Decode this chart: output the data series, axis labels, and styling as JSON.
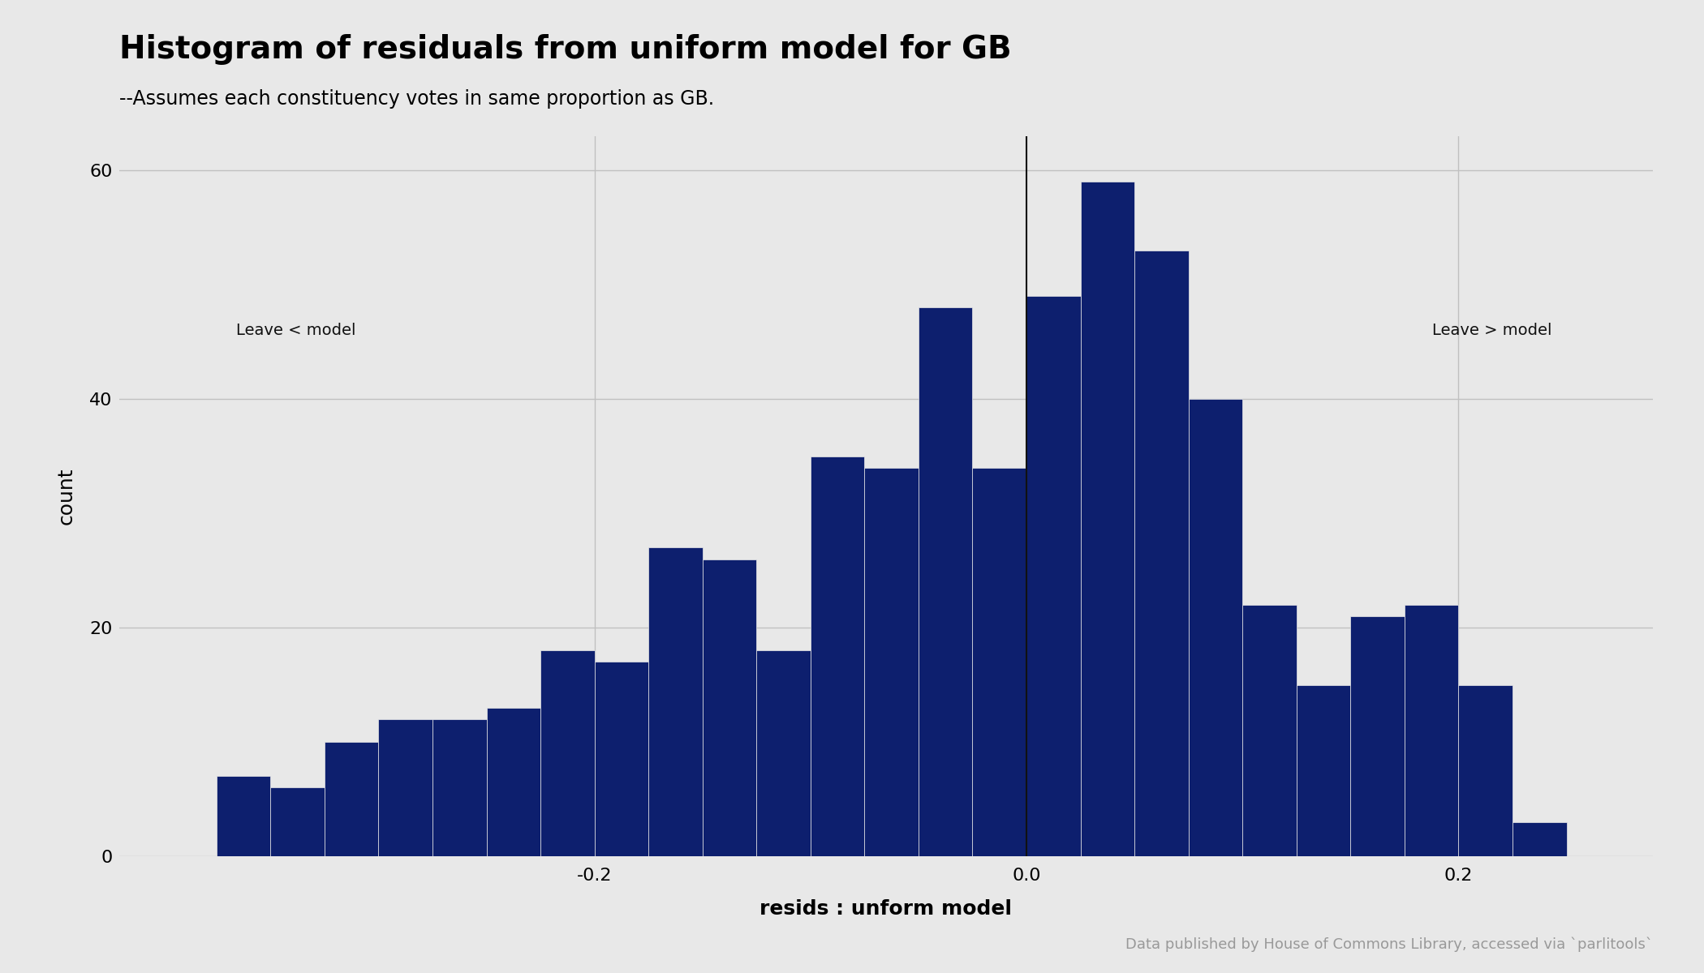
{
  "title": "Histogram of residuals from uniform model for GB",
  "subtitle": "--Assumes each constituency votes in same proportion as GB.",
  "xlabel": "resids : unform model",
  "ylabel": "count",
  "bar_color": "#0d1f6e",
  "background_color": "#e8e8e8",
  "vline_x": 0.0,
  "vline_color": "#111111",
  "annotation_left": "Leave < model",
  "annotation_right": "Leave > model",
  "caption": "Data published by House of Commons Library, accessed via `parlitools`",
  "bin_edges": [
    -0.375,
    -0.35,
    -0.325,
    -0.3,
    -0.275,
    -0.25,
    -0.225,
    -0.2,
    -0.175,
    -0.15,
    -0.125,
    -0.1,
    -0.075,
    -0.05,
    -0.025,
    0.0,
    0.025,
    0.05,
    0.075,
    0.1,
    0.125,
    0.15,
    0.175,
    0.2,
    0.225,
    0.25
  ],
  "counts": [
    7,
    6,
    10,
    12,
    12,
    13,
    18,
    17,
    27,
    26,
    18,
    35,
    34,
    48,
    34,
    49,
    59,
    53,
    40,
    22,
    15,
    21,
    22,
    15,
    3
  ],
  "ylim": [
    0,
    63
  ],
  "yticks": [
    0,
    20,
    40,
    60
  ],
  "xticks": [
    -0.2,
    0.0,
    0.2
  ],
  "xlim": [
    -0.42,
    0.29
  ],
  "title_fontsize": 28,
  "subtitle_fontsize": 17,
  "axis_label_fontsize": 18,
  "tick_fontsize": 16,
  "caption_fontsize": 13,
  "annot_fontsize": 14
}
